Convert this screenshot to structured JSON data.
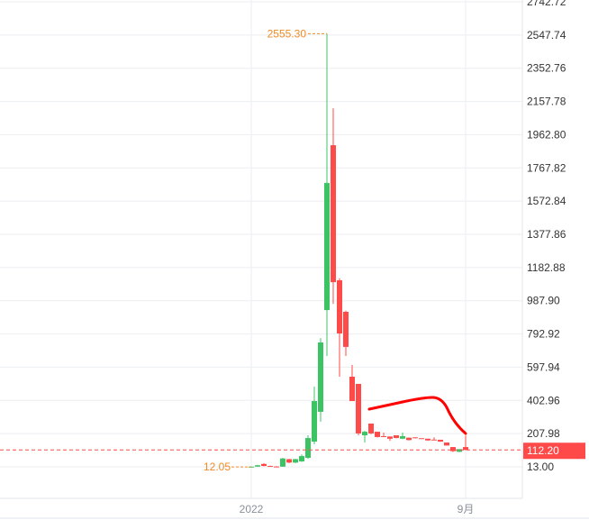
{
  "chart_data": {
    "type": "candlestick",
    "title": "",
    "xlabel": "",
    "ylabel": "",
    "ylim": [
      13.0,
      2742.72
    ],
    "y_ticks": [
      "2742.72",
      "2547.74",
      "2352.76",
      "2157.78",
      "1962.80",
      "1767.82",
      "1572.84",
      "1377.86",
      "1182.88",
      "987.90",
      "792.92",
      "597.94",
      "402.96",
      "207.98",
      "13.00"
    ],
    "x_ticks": [
      {
        "label": "2022",
        "index": 0
      },
      {
        "label": "9月",
        "index": 34
      }
    ],
    "grid": true,
    "up_color": "#3cc464",
    "down_color": "#ff4a4a",
    "max_label": "2555.30",
    "min_label": "12.05",
    "last_price": "112.20",
    "last_price_value": 112.2,
    "annotation_color": "#ff0000",
    "candles": [
      [
        12.05,
        15,
        12.05,
        14
      ],
      [
        14,
        25,
        14,
        22
      ],
      [
        30,
        34,
        16,
        18
      ],
      [
        18,
        20,
        14,
        15
      ],
      [
        15,
        17,
        13,
        14
      ],
      [
        14,
        66,
        13,
        62
      ],
      [
        58,
        60,
        35,
        38
      ],
      [
        38,
        60,
        35,
        58
      ],
      [
        45,
        85,
        42,
        76
      ],
      [
        66,
        198,
        60,
        182
      ],
      [
        161,
        484,
        145,
        399
      ],
      [
        336,
        769,
        278,
        743
      ],
      [
        933,
        2555.3,
        664,
        1679
      ],
      [
        1901,
        2118,
        970,
        1097
      ],
      [
        1108,
        1120,
        542,
        796
      ],
      [
        923,
        930,
        664,
        717
      ],
      [
        542,
        611,
        399,
        399
      ],
      [
        500,
        500,
        198,
        209
      ],
      [
        198,
        224,
        156,
        219
      ],
      [
        267,
        267,
        205,
        209
      ],
      [
        219,
        219,
        185,
        188
      ],
      [
        193,
        214,
        188,
        188
      ],
      [
        191,
        191,
        166,
        178
      ],
      [
        198,
        198,
        180,
        182
      ],
      [
        178,
        214,
        176,
        193
      ],
      [
        184,
        184,
        168,
        170
      ],
      [
        186,
        186,
        180,
        182
      ],
      [
        181,
        181,
        180,
        180
      ],
      [
        178,
        178,
        166,
        168
      ],
      [
        173,
        186,
        170,
        170
      ],
      [
        172,
        172,
        160,
        161
      ],
      [
        156,
        156,
        138,
        138
      ],
      [
        129,
        129,
        100,
        105
      ],
      [
        101,
        117,
        99,
        117
      ],
      [
        129,
        196,
        110,
        112.2
      ]
    ]
  }
}
